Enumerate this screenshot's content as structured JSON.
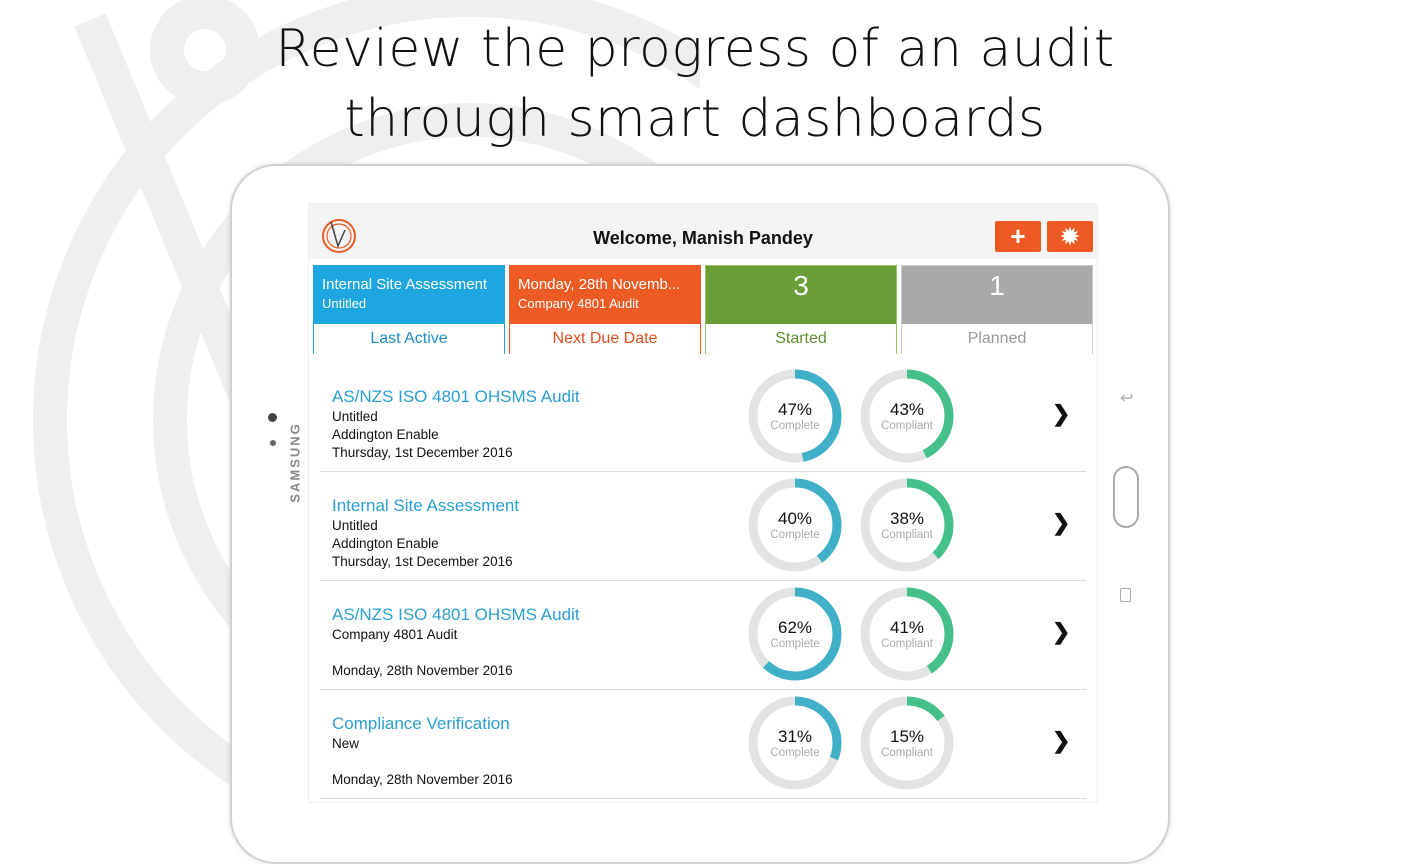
{
  "headline": {
    "line1": "Review the progress of an audit",
    "line2": "through smart dashboards"
  },
  "device": {
    "brand": "SAMSUNG"
  },
  "app": {
    "welcome": "Welcome, Manish Pandey",
    "add_icon": "plus-icon",
    "settings_icon": "gear-icon",
    "colors": {
      "accent": "#ee5a24",
      "blue": "#1ea6e0",
      "green": "#6a9f38",
      "gray": "#a9a9a9",
      "complete": "#3fb0c8",
      "compliant": "#45c08a"
    },
    "tiles": [
      {
        "line1": "Internal Site Assessment",
        "line2": "Untitled",
        "label": "Last Active"
      },
      {
        "line1": "Monday, 28th Novemb...",
        "line2": "Company 4801 Audit",
        "label": "Next Due Date"
      },
      {
        "value": "3",
        "label": "Started"
      },
      {
        "value": "1",
        "label": "Planned"
      }
    ],
    "audits": [
      {
        "title": "AS/NZS ISO 4801 OHSMS Audit",
        "lines": [
          "Untitled",
          "Addington Enable",
          "Thursday, 1st December 2016"
        ],
        "complete": 47,
        "compliant": 43,
        "complete_text": "47%",
        "compliant_text": "43%"
      },
      {
        "title": "Internal Site Assessment",
        "lines": [
          "Untitled",
          "Addington Enable",
          "Thursday, 1st December 2016"
        ],
        "complete": 40,
        "compliant": 38,
        "complete_text": "40%",
        "compliant_text": "38%"
      },
      {
        "title": "AS/NZS ISO 4801 OHSMS Audit",
        "lines": [
          "Company 4801 Audit",
          "",
          "Monday, 28th November 2016"
        ],
        "complete": 62,
        "compliant": 41,
        "complete_text": "62%",
        "compliant_text": "41%"
      },
      {
        "title": "Compliance Verification",
        "lines": [
          "New",
          "",
          "Monday, 28th November 2016"
        ],
        "complete": 31,
        "compliant": 15,
        "complete_text": "31%",
        "compliant_text": "15%"
      }
    ],
    "complete_label": "Complete",
    "compliant_label": "Compliant"
  }
}
